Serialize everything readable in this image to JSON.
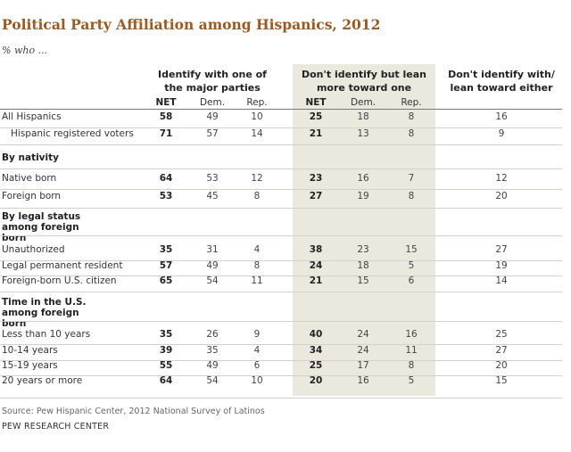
{
  "chart_data": {
    "type": "table",
    "title": "Political Party Affiliation among Hispanics, 2012",
    "subtitle": "% who ...",
    "column_groups": [
      {
        "label": "Identify with one of the major parties",
        "columns": [
          "NET",
          "Dem.",
          "Rep."
        ]
      },
      {
        "label": "Don't identify but lean more toward one",
        "columns": [
          "NET",
          "Dem.",
          "Rep."
        ]
      },
      {
        "label": "Don't identify with/ lean toward either",
        "columns": []
      }
    ],
    "rows": [
      {
        "label": "All Hispanics",
        "values": [
          58,
          49,
          10,
          25,
          18,
          8,
          16
        ]
      },
      {
        "label": "Hispanic registered voters",
        "values": [
          71,
          57,
          14,
          21,
          13,
          8,
          9
        ]
      },
      {
        "section": "By nativity"
      },
      {
        "label": "Native born",
        "values": [
          64,
          53,
          12,
          23,
          16,
          7,
          12
        ]
      },
      {
        "label": "Foreign born",
        "values": [
          53,
          45,
          8,
          27,
          19,
          8,
          20
        ]
      },
      {
        "section": "By legal status among foreign born"
      },
      {
        "label": "Unauthorized",
        "values": [
          35,
          31,
          4,
          38,
          23,
          15,
          27
        ]
      },
      {
        "label": "Legal permanent resident",
        "values": [
          57,
          49,
          8,
          24,
          18,
          5,
          19
        ]
      },
      {
        "label": "Foreign-born U.S. citizen",
        "values": [
          65,
          54,
          11,
          21,
          15,
          6,
          14
        ]
      },
      {
        "section": "Time in the U.S. among foreign born"
      },
      {
        "label": "Less than 10 years",
        "values": [
          35,
          26,
          9,
          40,
          24,
          16,
          25
        ]
      },
      {
        "label": "10-14 years",
        "values": [
          39,
          35,
          4,
          34,
          24,
          11,
          27
        ]
      },
      {
        "label": "15-19 years",
        "values": [
          55,
          49,
          6,
          25,
          17,
          8,
          20
        ]
      },
      {
        "label": "20 years or more",
        "values": [
          64,
          54,
          10,
          20,
          16,
          5,
          15
        ]
      }
    ],
    "source": "Source: Pew Hispanic Center, 2012 National Survey of Latinos",
    "organization": "PEW RESEARCH CENTER",
    "colors": {
      "title": "#9a5a22",
      "shaded_column_band": "#ebe8dd",
      "rule": "#d4d2c8"
    }
  }
}
